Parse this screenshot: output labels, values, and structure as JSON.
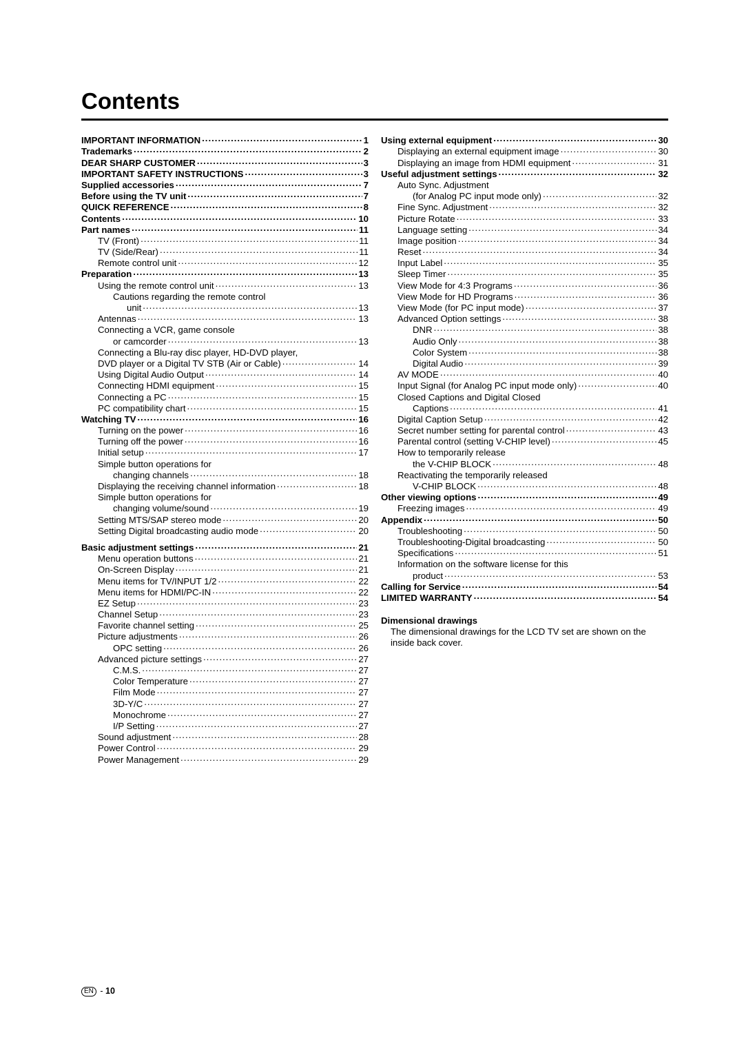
{
  "title": "Contents",
  "footer_badge": "EN",
  "footer_sep": "-",
  "footer_page": "10",
  "footnote": {
    "title": "Dimensional drawings",
    "body": "The dimensional drawings for the LCD TV set are shown on the inside back cover."
  },
  "left": [
    {
      "label": "IMPORTANT INFORMATION",
      "page": "1",
      "bold": true,
      "indent": 0
    },
    {
      "label": "Trademarks",
      "page": "2",
      "bold": true,
      "indent": 0
    },
    {
      "label": "DEAR SHARP CUSTOMER",
      "page": "3",
      "bold": true,
      "indent": 0
    },
    {
      "label": "IMPORTANT SAFETY INSTRUCTIONS",
      "page": "3",
      "bold": true,
      "indent": 0
    },
    {
      "label": "Supplied accessories",
      "page": "7",
      "bold": true,
      "indent": 0
    },
    {
      "label": "Before using the TV unit",
      "page": "7",
      "bold": true,
      "indent": 0
    },
    {
      "label": "QUICK REFERENCE",
      "page": "8",
      "bold": true,
      "indent": 0
    },
    {
      "label": "Contents",
      "page": "10",
      "bold": true,
      "indent": 0
    },
    {
      "label": "Part names",
      "page": "11",
      "bold": true,
      "indent": 0
    },
    {
      "label": "TV (Front)",
      "page": "11",
      "indent": 1
    },
    {
      "label": "TV (Side/Rear)",
      "page": "11",
      "indent": 1
    },
    {
      "label": "Remote control unit",
      "page": "12",
      "indent": 1
    },
    {
      "label": "Preparation",
      "page": "13",
      "bold": true,
      "indent": 0
    },
    {
      "label": "Using the remote control unit",
      "page": "13",
      "indent": 1
    },
    {
      "label": "Cautions regarding the remote control",
      "nolead": true,
      "indent": 2
    },
    {
      "label": "unit",
      "page": "13",
      "indent": 3
    },
    {
      "label": "Antennas",
      "page": "13",
      "indent": 1
    },
    {
      "label": "Connecting a VCR, game console",
      "nolead": true,
      "indent": 1
    },
    {
      "label": "or camcorder",
      "page": "13",
      "indent": 2
    },
    {
      "label": "Connecting a Blu-ray disc player, HD-DVD player,",
      "nolead": true,
      "indent": 1
    },
    {
      "label": "DVD player or a Digital TV STB (Air or Cable)",
      "page": "14",
      "indent": 1
    },
    {
      "label": "Using Digital Audio Output",
      "page": "14",
      "indent": 1
    },
    {
      "label": "Connecting HDMI equipment",
      "page": "15",
      "indent": 1
    },
    {
      "label": "Connecting a PC",
      "page": "15",
      "indent": 1
    },
    {
      "label": "PC compatibility chart",
      "page": "15",
      "indent": 1
    },
    {
      "label": "Watching TV",
      "page": "16",
      "bold": true,
      "indent": 0
    },
    {
      "label": "Turning on the power",
      "page": "16",
      "indent": 1
    },
    {
      "label": "Turning off the power",
      "page": "16",
      "indent": 1
    },
    {
      "label": "Initial setup",
      "page": "17",
      "indent": 1
    },
    {
      "label": "Simple button operations for",
      "nolead": true,
      "indent": 1
    },
    {
      "label": "changing channels",
      "page": "18",
      "indent": 2
    },
    {
      "label": "Displaying the receiving channel information",
      "page": "18",
      "indent": 1
    },
    {
      "label": "Simple button operations for",
      "nolead": true,
      "indent": 1
    },
    {
      "label": "changing volume/sound",
      "page": "19",
      "indent": 2
    },
    {
      "label": "Setting MTS/SAP stereo mode",
      "page": "20",
      "indent": 1
    },
    {
      "label": "Setting Digital broadcasting audio mode",
      "page": "20",
      "indent": 1
    },
    {
      "spacer": true
    },
    {
      "label": "Basic adjustment settings",
      "page": "21",
      "bold": true,
      "indent": 0
    },
    {
      "label": "Menu operation buttons",
      "page": "21",
      "indent": 1
    },
    {
      "label": "On-Screen Display",
      "page": "21",
      "indent": 1
    },
    {
      "label": "Menu items for TV/INPUT 1/2",
      "page": "22",
      "indent": 1
    },
    {
      "label": "Menu items for HDMI/PC-IN",
      "page": "22",
      "indent": 1
    },
    {
      "label": "EZ Setup",
      "page": "23",
      "indent": 1
    },
    {
      "label": "Channel Setup",
      "page": "23",
      "indent": 1
    },
    {
      "label": "Favorite channel setting",
      "page": "25",
      "indent": 1
    },
    {
      "label": "Picture adjustments",
      "page": "26",
      "indent": 1
    },
    {
      "label": "OPC setting",
      "page": "26",
      "indent": 2
    },
    {
      "label": "Advanced picture settings",
      "page": "27",
      "indent": 1
    },
    {
      "label": "C.M.S.",
      "page": "27",
      "indent": 2
    },
    {
      "label": "Color Temperature",
      "page": "27",
      "indent": 2
    },
    {
      "label": "Film Mode",
      "page": "27",
      "indent": 2
    },
    {
      "label": "3D-Y/C",
      "page": "27",
      "indent": 2
    },
    {
      "label": "Monochrome",
      "page": "27",
      "indent": 2
    },
    {
      "label": "I/P Setting",
      "page": "27",
      "indent": 2
    },
    {
      "label": "Sound adjustment",
      "page": "28",
      "indent": 1
    },
    {
      "label": "Power Control",
      "page": "29",
      "indent": 1
    },
    {
      "label": "Power Management",
      "page": "29",
      "indent": 1
    }
  ],
  "right": [
    {
      "label": "Using external equipment",
      "page": "30",
      "bold": true,
      "indent": 0
    },
    {
      "label": "Displaying an external equipment image",
      "page": "30",
      "indent": 1
    },
    {
      "label": "Displaying an image from HDMI equipment",
      "page": "31",
      "indent": 1
    },
    {
      "label": "Useful adjustment settings",
      "page": "32",
      "bold": true,
      "indent": 0
    },
    {
      "label": "Auto Sync. Adjustment",
      "nolead": true,
      "indent": 1
    },
    {
      "label": "(for Analog PC input mode only)",
      "page": "32",
      "indent": 2
    },
    {
      "label": "Fine Sync. Adjustment",
      "page": "32",
      "indent": 1
    },
    {
      "label": "Picture Rotate",
      "page": "33",
      "indent": 1
    },
    {
      "label": "Language setting",
      "page": "34",
      "indent": 1
    },
    {
      "label": "Image position",
      "page": "34",
      "indent": 1
    },
    {
      "label": "Reset",
      "page": "34",
      "indent": 1
    },
    {
      "label": "Input Label",
      "page": "35",
      "indent": 1
    },
    {
      "label": "Sleep Timer",
      "page": "35",
      "indent": 1
    },
    {
      "label": "View Mode for 4:3 Programs",
      "page": "36",
      "indent": 1
    },
    {
      "label": "View Mode for HD Programs",
      "page": "36",
      "indent": 1
    },
    {
      "label": "View Mode (for PC input mode)",
      "page": "37",
      "indent": 1
    },
    {
      "label": "Advanced Option settings",
      "page": "38",
      "indent": 1
    },
    {
      "label": "DNR",
      "page": "38",
      "indent": 2
    },
    {
      "label": "Audio Only",
      "page": "38",
      "indent": 2
    },
    {
      "label": "Color System",
      "page": "38",
      "indent": 2
    },
    {
      "label": "Digital Audio",
      "page": "39",
      "indent": 2
    },
    {
      "label": "AV MODE",
      "page": "40",
      "indent": 1
    },
    {
      "label": "Input Signal (for Analog PC input mode only)",
      "page": "40",
      "indent": 1
    },
    {
      "label": "Closed Captions and Digital Closed",
      "nolead": true,
      "indent": 1
    },
    {
      "label": "Captions",
      "page": "41",
      "indent": 2
    },
    {
      "label": "Digital Caption Setup",
      "page": "42",
      "indent": 1
    },
    {
      "label": "Secret number setting for parental control",
      "page": "43",
      "indent": 1
    },
    {
      "label": "Parental control (setting V-CHIP level)",
      "page": "45",
      "indent": 1
    },
    {
      "label": "How to temporarily release",
      "nolead": true,
      "indent": 1
    },
    {
      "label": "the V-CHIP BLOCK",
      "page": "48",
      "indent": 2
    },
    {
      "label": "Reactivating the temporarily released",
      "nolead": true,
      "indent": 1
    },
    {
      "label": "V-CHIP BLOCK",
      "page": "48",
      "indent": 2
    },
    {
      "label": "Other viewing options",
      "page": "49",
      "bold": true,
      "indent": 0
    },
    {
      "label": "Freezing images",
      "page": "49",
      "indent": 1
    },
    {
      "label": "Appendix",
      "page": "50",
      "bold": true,
      "indent": 0
    },
    {
      "label": "Troubleshooting",
      "page": "50",
      "indent": 1
    },
    {
      "label": "Troubleshooting-Digital broadcasting",
      "page": "50",
      "indent": 1
    },
    {
      "label": "Speciﬁcations",
      "page": "51",
      "indent": 1
    },
    {
      "label": "Information on the software license for this",
      "nolead": true,
      "indent": 1
    },
    {
      "label": "product",
      "page": "53",
      "indent": 2
    },
    {
      "label": "Calling for Service",
      "page": "54",
      "bold": true,
      "indent": 0
    },
    {
      "label": "LIMITED WARRANTY",
      "page": "54",
      "bold": true,
      "indent": 0
    }
  ]
}
